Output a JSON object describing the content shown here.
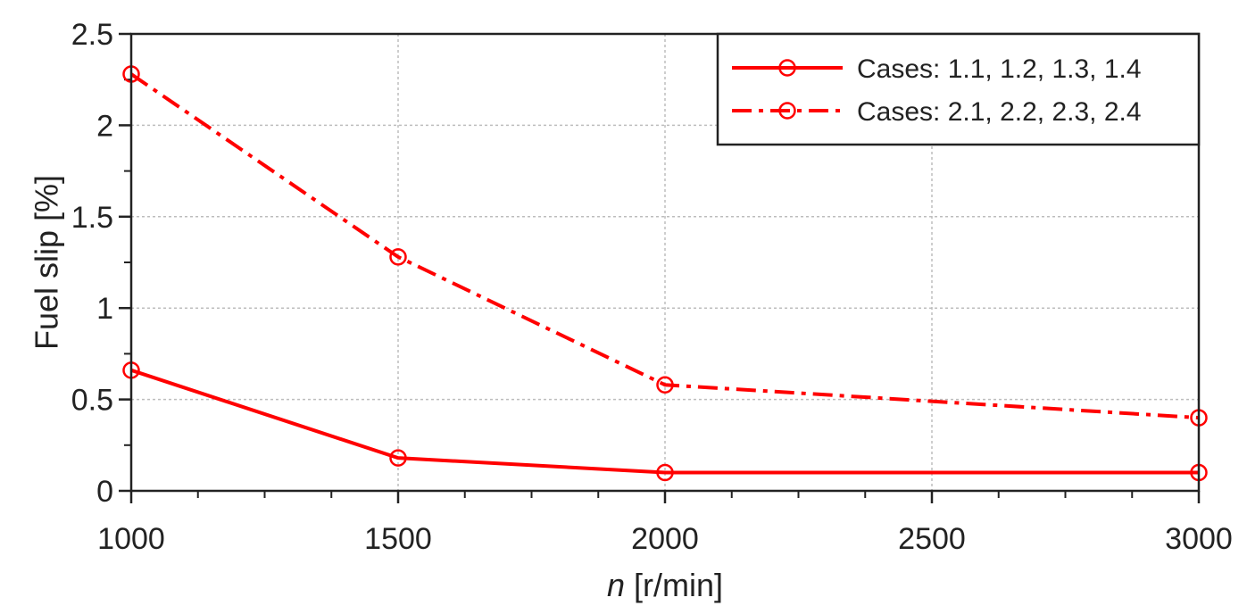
{
  "chart_data": {
    "type": "line",
    "xlabel_var": "n",
    "xlabel_unit": " [r/min]",
    "ylabel": "Fuel slip [%]",
    "xlim": [
      1000,
      3000
    ],
    "ylim": [
      0,
      2.5
    ],
    "xticks": [
      "1000",
      "1500",
      "2000",
      "2500",
      "3000"
    ],
    "yticks": [
      "0",
      "0.5",
      "1",
      "1.5",
      "2",
      "2.5"
    ],
    "grid": true,
    "legend_position": "top-right",
    "series": [
      {
        "name": "Cases: 1.1, 1.2, 1.3, 1.4",
        "style": "solid",
        "color": "#ff0000",
        "marker": "circle",
        "x": [
          1000,
          1500,
          2000,
          3000
        ],
        "y": [
          0.66,
          0.18,
          0.1,
          0.1
        ]
      },
      {
        "name": "Cases: 2.1, 2.2, 2.3, 2.4",
        "style": "dash-dot",
        "color": "#ff0000",
        "marker": "circle",
        "x": [
          1000,
          1500,
          2000,
          3000
        ],
        "y": [
          2.28,
          1.28,
          0.58,
          0.4
        ]
      }
    ]
  }
}
